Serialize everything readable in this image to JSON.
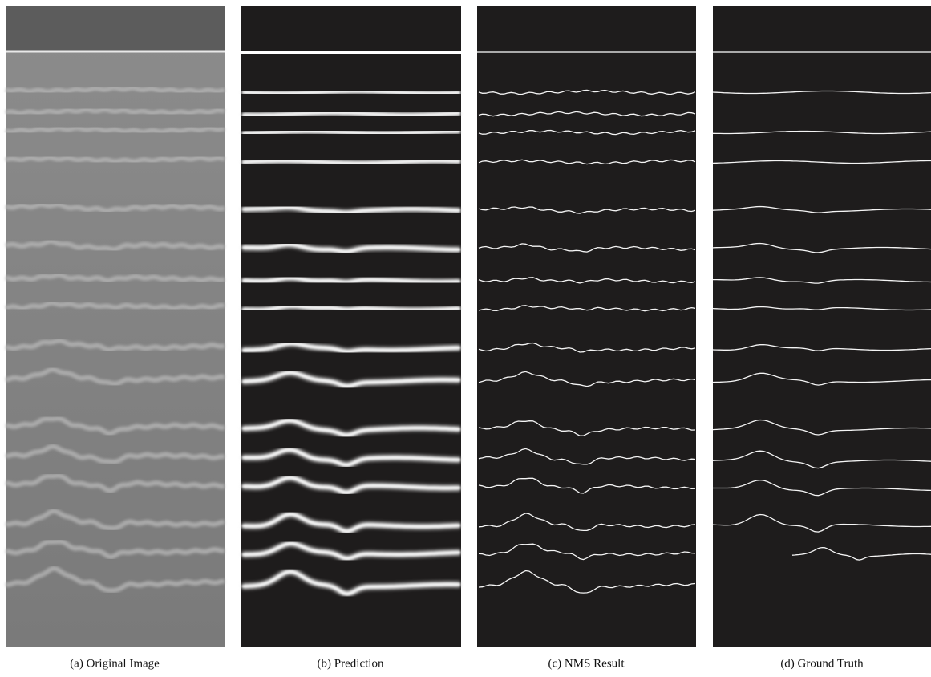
{
  "figure": {
    "panels": [
      {
        "caption": "(a) Original Image"
      },
      {
        "caption": "(b) Prediction"
      },
      {
        "caption": "(c) NMS Result"
      },
      {
        "caption": "(d) Ground Truth"
      }
    ]
  }
}
